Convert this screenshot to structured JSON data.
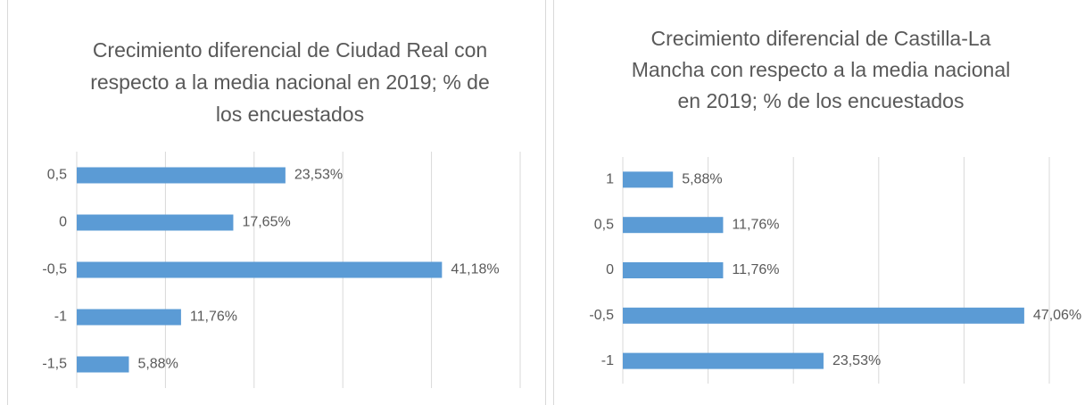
{
  "chart_data": [
    {
      "type": "bar",
      "orientation": "horizontal",
      "title": "Crecimiento diferencial de Ciudad Real con respecto a la media nacional en 2019; % de los encuestados",
      "categories": [
        "0,5",
        "0",
        "-0,5",
        "-1",
        "-1,5"
      ],
      "values": [
        23.53,
        17.65,
        41.18,
        11.76,
        5.88
      ],
      "value_labels": [
        "23,53%",
        "17,65%",
        "41,18%",
        "11,76%",
        "5,88%"
      ],
      "color": "#5b9bd5",
      "xlim": [
        0,
        50
      ],
      "xticks": [
        0,
        10,
        20,
        30,
        40,
        50
      ],
      "grid": true
    },
    {
      "type": "bar",
      "orientation": "horizontal",
      "title": "Crecimiento diferencial de Castilla-La Mancha con respecto a la media nacional en 2019; % de los encuestados",
      "categories": [
        "1",
        "0,5",
        "0",
        "-0,5",
        "-1"
      ],
      "values": [
        5.88,
        11.76,
        11.76,
        47.06,
        23.53
      ],
      "value_labels": [
        "5,88%",
        "11,76%",
        "11,76%",
        "47,06%",
        "23,53%"
      ],
      "color": "#5b9bd5",
      "xlim": [
        0,
        50
      ],
      "xticks": [
        0,
        10,
        20,
        30,
        40,
        50
      ],
      "grid": true
    }
  ]
}
